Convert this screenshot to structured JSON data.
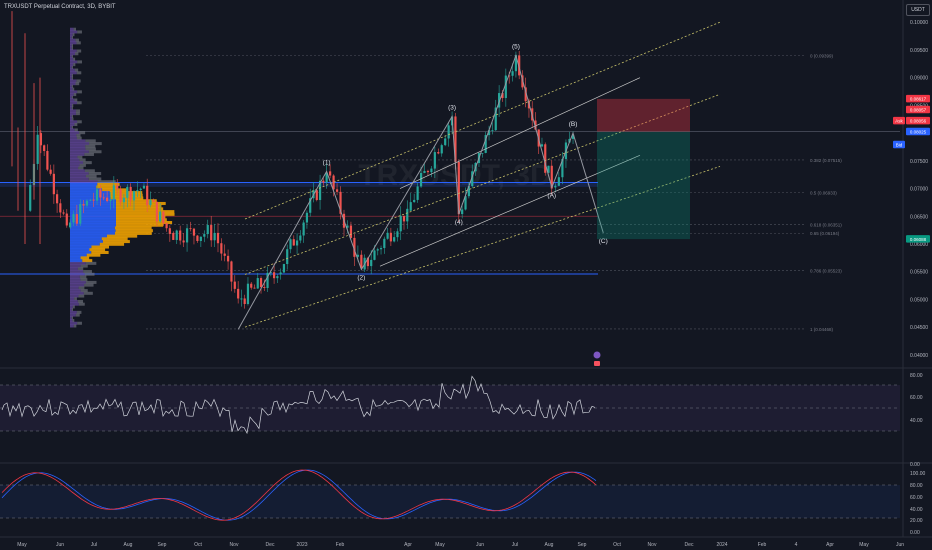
{
  "header": {
    "symbol_title": "TRXUSDT Perpetual Contract, 3D, BYBIT",
    "currency_button": "USDT",
    "watermark": "TRXUSDT, 3D"
  },
  "price_axis": {
    "labels": [
      "0.10000",
      "0.09500",
      "0.09000",
      "0.08500",
      "0.08000",
      "0.07500",
      "0.07000",
      "0.06500",
      "0.06000",
      "0.05500",
      "0.05000",
      "0.04500",
      "0.04000"
    ],
    "badges": [
      {
        "text": "0.08617",
        "color": "#f23645"
      },
      {
        "text": "0.08057",
        "color": "#f23645"
      },
      {
        "text": "0.08056",
        "color": "#f23645"
      },
      {
        "text": "0.08025",
        "color": "#2962ff"
      },
      {
        "text": "0.06088",
        "color": "#089981"
      }
    ],
    "side_labels": [
      {
        "text": "Ask",
        "color": "#f23645"
      },
      {
        "text": "Bid",
        "color": "#2962ff"
      }
    ]
  },
  "fib_levels": [
    {
      "label": "0 (0.09399)",
      "price": 0.09399
    },
    {
      "label": "0.382 (0.07515)",
      "price": 0.07515
    },
    {
      "label": "0.5 (0.06933)",
      "price": 0.06933
    },
    {
      "label": "0.618 (0.06351)",
      "price": 0.06351
    },
    {
      "label": "0.65 (0.06194)",
      "price": 0.06194
    },
    {
      "label": "0.786 (0.05523)",
      "price": 0.05523
    },
    {
      "label": "1 (0.04468)",
      "price": 0.04468
    }
  ],
  "wave_labels": [
    {
      "text": "(1)",
      "x": "2023-01-28",
      "price": 0.0731
    },
    {
      "text": "(2)",
      "x": "2023-02-28",
      "price": 0.0554
    },
    {
      "text": "(3)",
      "x": "2023-05-20",
      "price": 0.083
    },
    {
      "text": "(4)",
      "x": "2023-05-26",
      "price": 0.0654
    },
    {
      "text": "(5)",
      "x": "2023-07-16",
      "price": 0.094
    },
    {
      "text": "(A)",
      "x": "2023-08-17",
      "price": 0.0702
    },
    {
      "text": "(B)",
      "x": "2023-09-05",
      "price": 0.08
    },
    {
      "text": "(C)",
      "x": "2023-10-02",
      "price": 0.062
    }
  ],
  "rsi_panel": {
    "labels": [
      "80.00",
      "60.00",
      "40.00"
    ]
  },
  "stoch_panel": {
    "labels": [
      "0.00",
      "100.00",
      "80.00",
      "60.00",
      "40.00",
      "20.00",
      "0.00"
    ]
  },
  "time_axis": {
    "labels": [
      "May",
      "Jun",
      "Jul",
      "Aug",
      "Sep",
      "Oct",
      "Nov",
      "Dec",
      "2023",
      "Feb",
      "Apr",
      "May",
      "Jun",
      "Jul",
      "Aug",
      "Sep",
      "Oct",
      "Nov",
      "Dec",
      "2024",
      "Feb",
      "4",
      "Apr",
      "May",
      "Jun"
    ]
  },
  "colors": {
    "background": "#131722",
    "up": "#26a69a",
    "down": "#ef5350",
    "channel": "#c8c26a",
    "wave": "#9598a1",
    "zone_line": "#2962ff",
    "profile_blue": "#2962ff",
    "profile_orange": "#f7a600",
    "profile_purple": "#7e57c2",
    "rsi_line": "#d1d4dc",
    "stoch_k": "#2962ff",
    "stoch_d": "#f23645"
  },
  "chart_data": {
    "type": "candlestick",
    "title": "TRXUSDT Perpetual Contract, 3D, BYBIT",
    "x_axis": "time (3D candles, May 2022 – Sep 2023)",
    "ylim": [
      0.038,
      0.104
    ],
    "swing_points": [
      {
        "date": "2022-05-05",
        "price": 0.066
      },
      {
        "date": "2022-05-15",
        "price": 0.08
      },
      {
        "date": "2022-06-10",
        "price": 0.063
      },
      {
        "date": "2022-07-01",
        "price": 0.068
      },
      {
        "date": "2022-08-15",
        "price": 0.07
      },
      {
        "date": "2022-09-10",
        "price": 0.062
      },
      {
        "date": "2022-10-20",
        "price": 0.062
      },
      {
        "date": "2022-11-10",
        "price": 0.05
      },
      {
        "date": "2022-12-15",
        "price": 0.0545
      },
      {
        "date": "2023-01-28",
        "price": 0.0731
      },
      {
        "date": "2023-02-28",
        "price": 0.0554
      },
      {
        "date": "2023-04-10",
        "price": 0.066
      },
      {
        "date": "2023-05-20",
        "price": 0.083
      },
      {
        "date": "2023-05-26",
        "price": 0.0654
      },
      {
        "date": "2023-07-16",
        "price": 0.094
      },
      {
        "date": "2023-08-17",
        "price": 0.0702
      },
      {
        "date": "2023-09-05",
        "price": 0.08
      }
    ],
    "trade_box": {
      "entry": 0.08025,
      "stop": 0.08617,
      "target": 0.06088
    }
  }
}
